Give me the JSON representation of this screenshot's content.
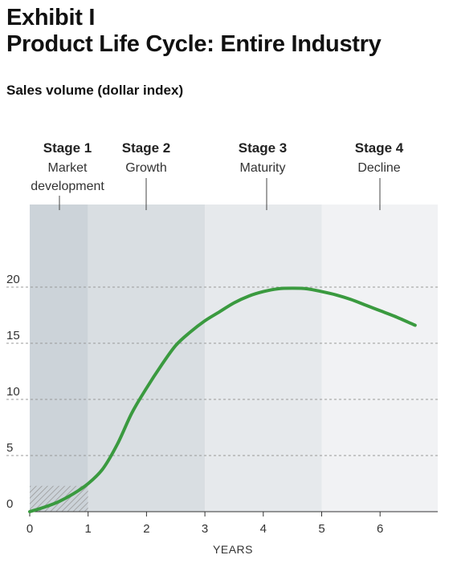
{
  "exhibit": "Exhibit I",
  "title": "Product Life Cycle: Entire Industry",
  "subtitle": "Sales volume (dollar index)",
  "colors": {
    "curve": "#3a9a3f",
    "stage_1": "#ccd3d9",
    "stage_2": "#d9dee2",
    "stage_3": "#e6e9ec",
    "stage_4": "#f1f2f4",
    "gridline": "#999999",
    "hatch": "#9a9a9a"
  },
  "chart_data": {
    "type": "line",
    "title": "Product Life Cycle: Entire Industry",
    "ylabel": "Sales volume (dollar index)",
    "xlabel": "YEARS",
    "xlim": [
      0,
      7
    ],
    "ylim": [
      0,
      25
    ],
    "x_ticks": [
      0,
      1,
      2,
      3,
      4,
      5,
      6
    ],
    "y_ticks": [
      0,
      5,
      10,
      15,
      20
    ],
    "grid": "horizontal dashed",
    "stages": [
      {
        "title": "Stage 1",
        "name": "Market development",
        "name_lines": [
          "Market",
          "development"
        ],
        "x_start": 0,
        "x_end": 1,
        "label_x": 0.5
      },
      {
        "title": "Stage 2",
        "name": "Growth",
        "name_lines": [
          "Growth"
        ],
        "x_start": 1,
        "x_end": 3,
        "label_x": 2
      },
      {
        "title": "Stage 3",
        "name": "Maturity",
        "name_lines": [
          "Maturity"
        ],
        "x_start": 3,
        "x_end": 5,
        "label_x": 3.05
      },
      {
        "title": "Stage 4",
        "name": "Decline",
        "name_lines": [
          "Decline"
        ],
        "x_start": 5,
        "x_end": 7,
        "label_x": 5.0
      }
    ],
    "hatched_region": {
      "x_start": 0,
      "x_end": 1,
      "y_start": 0,
      "y_end": 2.3
    },
    "series": [
      {
        "x": [
          0,
          0.25,
          0.5,
          0.75,
          1.0,
          1.25,
          1.5,
          1.75,
          2.0,
          2.25,
          2.5,
          2.75,
          3.0,
          3.25,
          3.5,
          3.75,
          4.0,
          4.25,
          4.5,
          4.75,
          5.0,
          5.25,
          5.5,
          5.75,
          6.0,
          6.25,
          6.6
        ],
        "y": [
          0,
          0.4,
          0.9,
          1.6,
          2.5,
          3.8,
          6.0,
          8.8,
          11.0,
          13.0,
          14.8,
          16.0,
          17.0,
          17.8,
          18.6,
          19.2,
          19.6,
          19.85,
          19.9,
          19.85,
          19.6,
          19.3,
          18.9,
          18.4,
          17.9,
          17.4,
          16.6
        ]
      }
    ]
  }
}
